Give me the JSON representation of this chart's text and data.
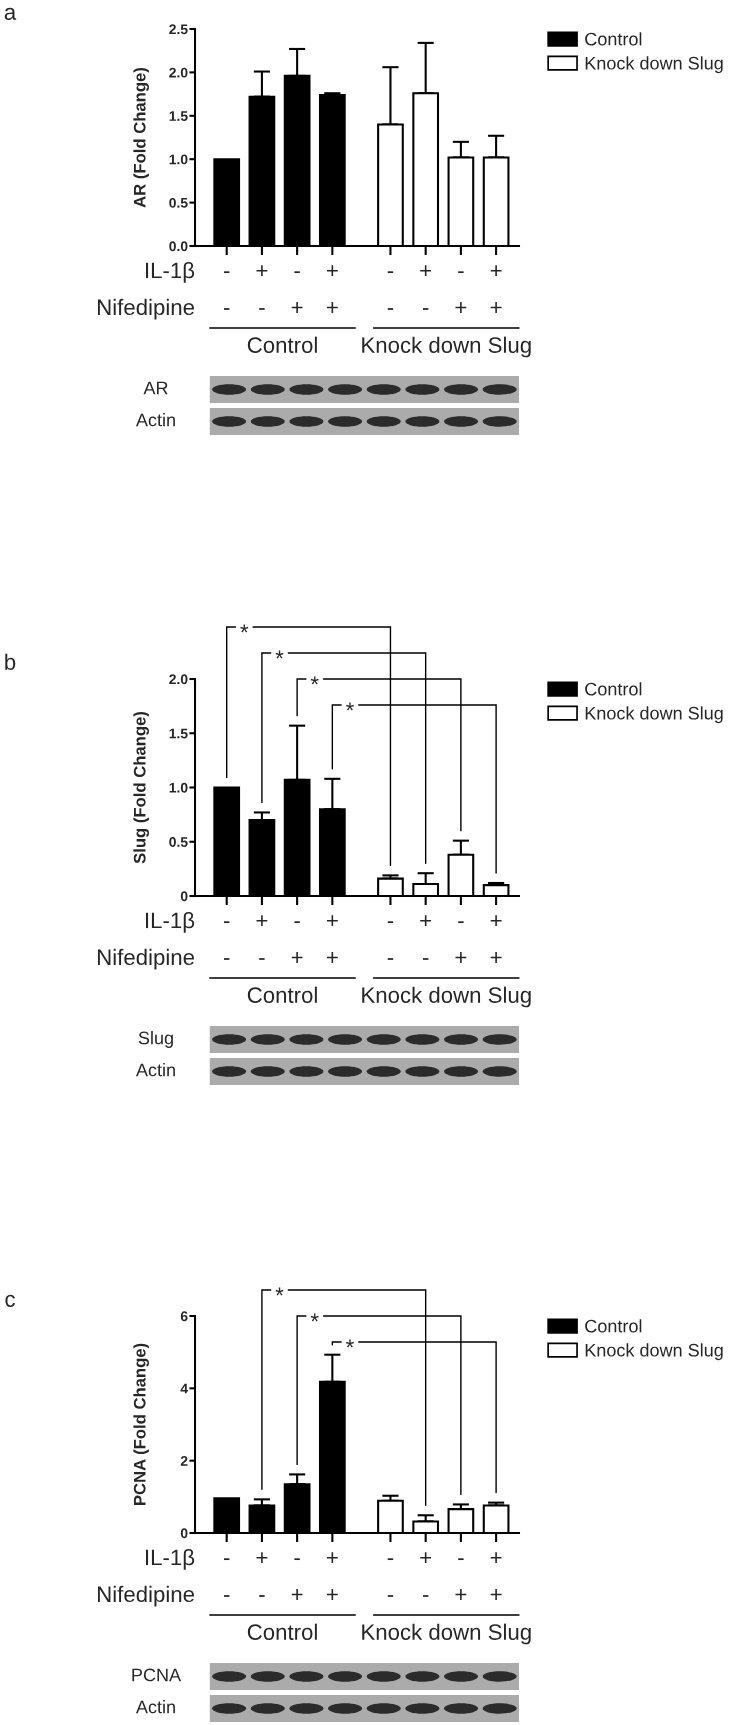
{
  "chart_data": [
    {
      "type": "bar",
      "ylabel": "AR (Fold Change)",
      "xlabel": "IL-1β\nNifedipine",
      "categories": [
        "-\n-",
        "+\n-",
        "-\n+",
        "+\n+",
        "-\n-",
        "+\n-",
        "-\n+",
        "+\n+"
      ],
      "series": [
        {
          "name": "Control",
          "color": "#000000",
          "values": [
            1.0,
            1.72,
            1.96,
            1.74,
            null,
            null,
            null,
            null
          ],
          "errors": [
            null,
            [
              1.72,
              2.01
            ],
            [
              1.96,
              2.27
            ],
            [
              1.74,
              1.76
            ],
            null,
            null,
            null,
            null
          ]
        },
        {
          "name": "Knock down Slug",
          "color": "#ffffff",
          "values": [
            null,
            null,
            null,
            null,
            1.4,
            1.76,
            1.02,
            1.02
          ],
          "errors": [
            null,
            null,
            null,
            null,
            [
              1.4,
              2.06
            ],
            [
              1.76,
              2.34
            ],
            [
              1.02,
              1.2
            ],
            [
              1.02,
              1.27
            ]
          ]
        }
      ],
      "ylim": [
        0,
        2.5
      ],
      "yticks": [
        {
          "value": 0,
          "label": "0.0"
        },
        0.5,
        {
          "value": 1,
          "label": "1.0"
        },
        1.5,
        {
          "value": 2,
          "label": "2.0"
        },
        2.5
      ],
      "legend": "top right",
      "annotations": [
        "a",
        "AR",
        "Actin"
      ]
    },
    {
      "type": "bar",
      "ylabel": "Slug (Fold Change)",
      "xlabel": "IL-1β\nNifedipine",
      "categories": [
        "-\n-",
        "+\n-",
        "-\n+",
        "+\n+",
        "-\n-",
        "+\n-",
        "-\n+",
        "+\n+"
      ],
      "series": [
        {
          "name": "Control",
          "color": "#000000",
          "values": [
            1.0,
            0.7,
            1.07,
            0.8,
            null,
            null,
            null,
            null
          ],
          "errors": [
            null,
            [
              0.7,
              0.77
            ],
            [
              1.07,
              1.57
            ],
            [
              0.8,
              1.08
            ],
            null,
            null,
            null,
            null
          ]
        },
        {
          "name": "Knock down Slug",
          "color": "#ffffff",
          "values": [
            null,
            null,
            null,
            null,
            0.16,
            0.11,
            0.38,
            0.1
          ],
          "errors": [
            null,
            null,
            null,
            null,
            [
              0.16,
              0.19
            ],
            [
              0.11,
              0.21
            ],
            [
              0.38,
              0.51
            ],
            [
              0.1,
              0.12
            ]
          ]
        }
      ],
      "ylim": [
        0,
        2
      ],
      "yticks": [
        0,
        0.5,
        {
          "value": 1,
          "label": "1.0"
        },
        1.5,
        {
          "value": 2,
          "label": "2.0"
        }
      ],
      "legend": "top right",
      "annotations": [
        "b",
        "Slug",
        "Actin",
        "*",
        "*",
        "*",
        "*"
      ]
    },
    {
      "type": "bar",
      "ylabel": "PCNA (Fold Change)",
      "xlabel": "IL-1β\nNifedipine",
      "categories": [
        "-\n-",
        "+\n-",
        "-\n+",
        "+\n+",
        "-\n-",
        "+\n-",
        "-\n+",
        "+\n+"
      ],
      "series": [
        {
          "name": "Control",
          "color": "#000000",
          "values": [
            0.96,
            0.76,
            1.35,
            4.18,
            null,
            null,
            null,
            null
          ],
          "errors": [
            null,
            [
              0.76,
              0.93
            ],
            [
              1.35,
              1.62
            ],
            [
              4.18,
              4.93
            ],
            null,
            null,
            null,
            null
          ]
        },
        {
          "name": "Knock down Slug",
          "color": "#ffffff",
          "values": [
            null,
            null,
            null,
            null,
            0.89,
            0.32,
            0.66,
            0.76
          ],
          "errors": [
            null,
            null,
            null,
            null,
            [
              0.89,
              1.03
            ],
            [
              0.32,
              0.49
            ],
            [
              0.66,
              0.79
            ],
            [
              0.76,
              0.84
            ]
          ]
        }
      ],
      "ylim": [
        0,
        6
      ],
      "yticks": [
        0,
        2,
        4,
        6
      ],
      "legend": "top right",
      "annotations": [
        "c",
        "PCNA",
        "Actin",
        "*",
        "*",
        "*"
      ]
    }
  ]
}
